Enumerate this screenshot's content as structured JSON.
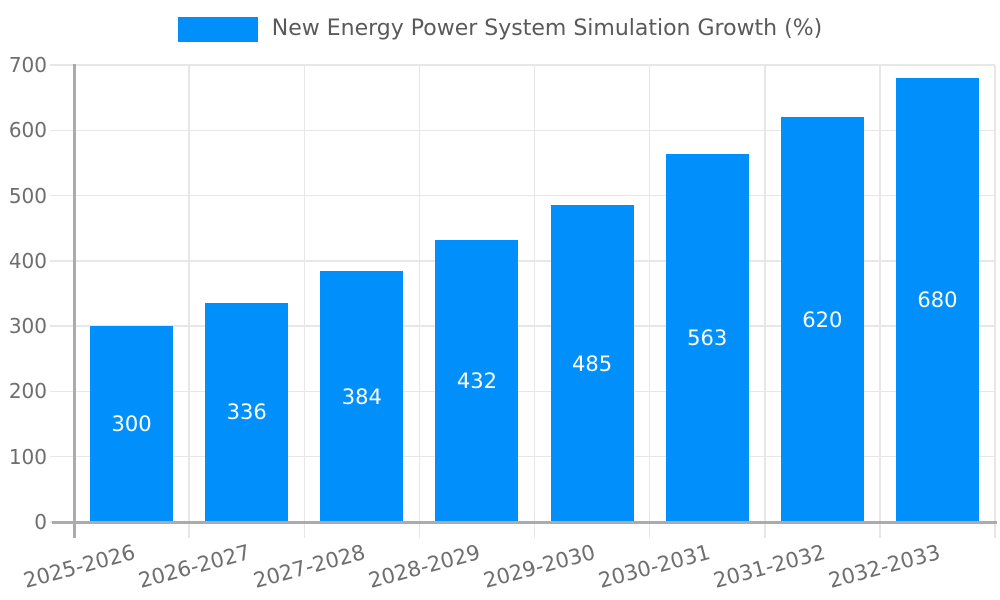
{
  "chart_data": {
    "type": "bar",
    "title": "New Energy Power System Simulation Growth (%)",
    "categories": [
      "2025-2026",
      "2026-2027",
      "2027-2028",
      "2028-2029",
      "2029-2030",
      "2030-2031",
      "2031-2032",
      "2032-2033"
    ],
    "values": [
      300,
      336,
      384,
      432,
      485,
      563,
      620,
      680
    ],
    "xlabel": "",
    "ylabel": "",
    "ylim": [
      0,
      700
    ],
    "yticks": [
      0,
      100,
      200,
      300,
      400,
      500,
      600,
      700
    ],
    "grid": "horizontal and vertical light gridlines",
    "legend_position": "top-center",
    "value_labels": "centered inside bars",
    "colors": {
      "bar": "#008FFB",
      "grid": "#e7e7e7",
      "axis": "#ababab",
      "axis_label": "#6e6e6e",
      "legend_text": "#5a5a5a",
      "value_label": "#ffffff",
      "background": "#ffffff"
    }
  }
}
